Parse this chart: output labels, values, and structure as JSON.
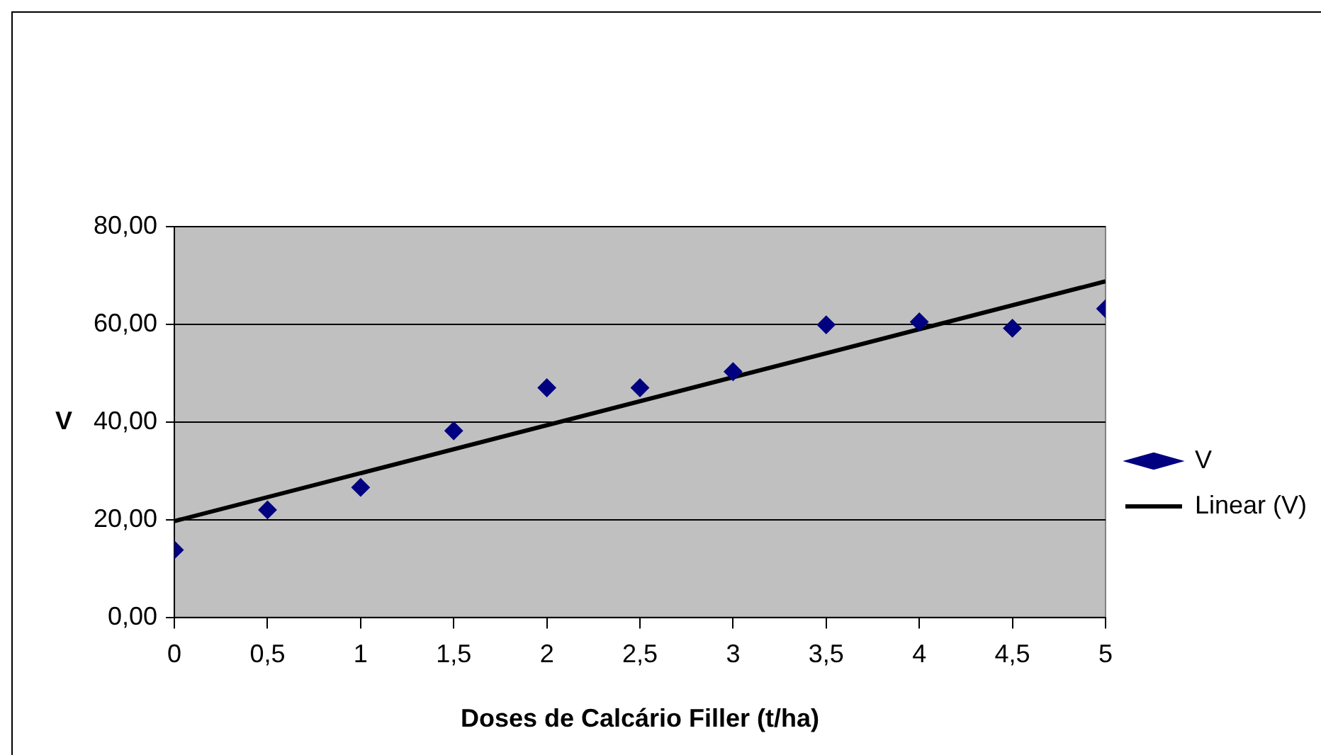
{
  "chart_data": {
    "type": "scatter",
    "xlabel": "Doses de Calcário Filler (t/ha)",
    "ylabel": "V",
    "x": [
      0,
      0.5,
      1,
      1.5,
      2,
      2.5,
      3,
      3.5,
      4,
      4.5,
      5
    ],
    "series": [
      {
        "name": "V",
        "type": "scatter",
        "color": "#000080",
        "marker": "diamond",
        "values": [
          13.8,
          22.0,
          26.6,
          38.2,
          47.0,
          47.0,
          50.3,
          59.9,
          60.5,
          59.2,
          63.2
        ]
      },
      {
        "name": "Linear (V)",
        "type": "line",
        "color": "#000000",
        "marker": "none",
        "line_style": "solid",
        "x": [
          0,
          5
        ],
        "values": [
          19.7,
          68.8
        ]
      }
    ],
    "xlim": [
      0,
      5
    ],
    "xticks": [
      0,
      {
        "value": 0.5,
        "label": "0,5"
      },
      1,
      {
        "value": 1.5,
        "label": "1,5"
      },
      2,
      {
        "value": 2.5,
        "label": "2,5"
      },
      3,
      {
        "value": 3.5,
        "label": "3,5"
      },
      4,
      {
        "value": 4.5,
        "label": "4,5"
      },
      5
    ],
    "ylim": [
      0,
      80
    ],
    "yticks": [
      {
        "value": 0,
        "label": "0,00"
      },
      {
        "value": 20,
        "label": "20,00"
      },
      {
        "value": 40,
        "label": "40,00"
      },
      {
        "value": 60,
        "label": "60,00"
      },
      {
        "value": 80,
        "label": "80,00"
      }
    ],
    "grid": "y",
    "legend": "right"
  }
}
